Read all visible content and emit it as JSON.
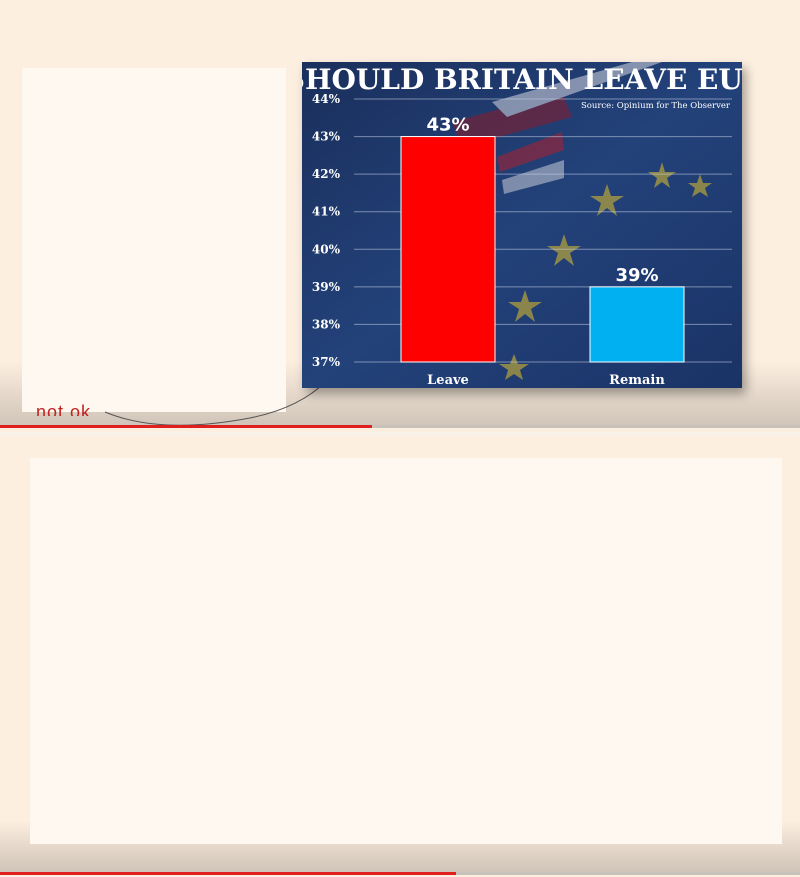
{
  "colors": {
    "page_background": "#fdefe0",
    "chart_background": "#1f3a6e",
    "leave_bar": "#ff0000",
    "remain_bar": "#00b0f0",
    "progress": "#e0201f"
  },
  "caption_peek": "not ok",
  "playback": {
    "top_progress_fraction": 0.465,
    "bottom_progress_fraction": 0.57
  },
  "chart_data": {
    "type": "bar",
    "title": "SHOULD BRITAIN LEAVE EU?",
    "source": "Source: Opinium for The Observer",
    "categories": [
      "Leave",
      "Remain"
    ],
    "values": [
      43,
      39
    ],
    "value_labels": [
      "43%",
      "39%"
    ],
    "ylim": [
      37,
      44
    ],
    "yticks": [
      44,
      43,
      42,
      41,
      40,
      39,
      38,
      37
    ],
    "ytick_labels": [
      "44%",
      "43%",
      "42%",
      "41%",
      "40%",
      "39%",
      "38%",
      "37%"
    ],
    "grid": true,
    "legend": "none"
  }
}
